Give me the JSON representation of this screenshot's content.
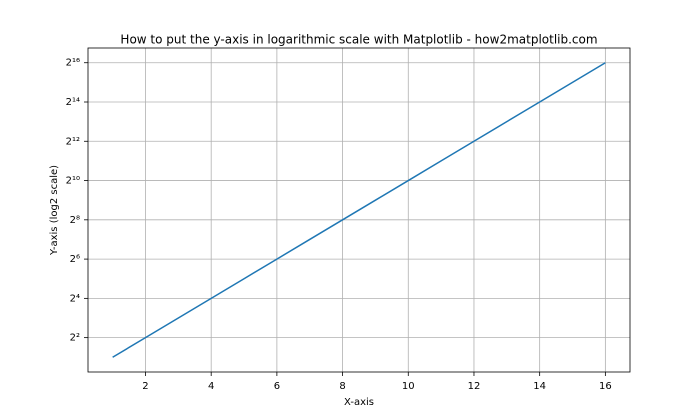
{
  "chart_data": {
    "type": "line",
    "title": "How to put the y-axis in logarithmic scale with Matplotlib - how2matplotlib.com",
    "xlabel": "X-axis",
    "ylabel": "Y-axis (log2 scale)",
    "x": [
      1,
      2,
      3,
      4,
      5,
      6,
      7,
      8,
      9,
      10,
      11,
      12,
      13,
      14,
      15,
      16
    ],
    "values": [
      2,
      4,
      8,
      16,
      32,
      64,
      128,
      256,
      512,
      1024,
      2048,
      4096,
      8192,
      16384,
      32768,
      65536
    ],
    "color": "#1f77b4",
    "xlim": [
      0.25,
      16.75
    ],
    "xticks": [
      2,
      4,
      6,
      8,
      10,
      12,
      14,
      16
    ],
    "yscale": "log",
    "ylim": [
      1.1892,
      110218.6
    ],
    "yticks": [
      {
        "value": 4,
        "label": "2²"
      },
      {
        "value": 16,
        "label": "2⁴"
      },
      {
        "value": 64,
        "label": "2⁶"
      },
      {
        "value": 256,
        "label": "2⁸"
      },
      {
        "value": 1024,
        "label": "2¹⁰"
      },
      {
        "value": 4096,
        "label": "2¹²"
      },
      {
        "value": 16384,
        "label": "2¹⁴"
      },
      {
        "value": 65536,
        "label": "2¹⁶"
      }
    ],
    "grid": true
  }
}
